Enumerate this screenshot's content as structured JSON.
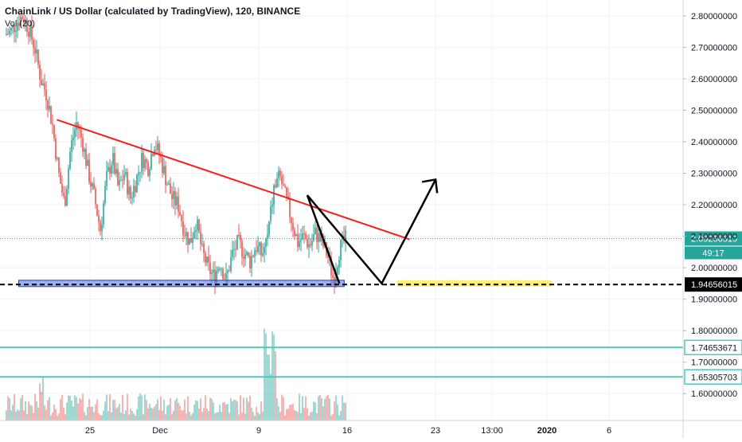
{
  "header": {
    "title": "ChainLink / US Dollar (calculated by TradingView), 120, BINANCE",
    "volume_label": "Vol (20)"
  },
  "colors": {
    "up": "#26a69a",
    "down": "#ef5350",
    "trendline": "#ff1a1a",
    "support_box": "#4a6fe3",
    "target_box": "#ffeb3b",
    "projection": "#000000",
    "level_line": "#4dc8c1",
    "last_price_line": "#26a69a"
  },
  "chart_data": {
    "type": "candlestick",
    "title": "ChainLink / US Dollar (calculated by TradingView), 120, BINANCE",
    "x_tick_labels": [
      "25",
      "Dec",
      "9",
      "16",
      "23",
      "13:00",
      "2020",
      "6"
    ],
    "y_ticks": [
      "2.80000000",
      "2.70000000",
      "2.60000000",
      "2.50000000",
      "2.40000000",
      "2.30000000",
      "2.20000000",
      "2.10000000",
      "2.00000000",
      "1.90000000",
      "1.80000000",
      "1.70000000",
      "1.60000000"
    ],
    "ylim": [
      1.55,
      2.83
    ],
    "price_labels": [
      {
        "name": "last-price",
        "value": 2.09256519,
        "text": "2.09256519",
        "countdown": "49:17",
        "style": "teal"
      },
      {
        "name": "support-level",
        "value": 1.94656015,
        "text": "1.94656015",
        "style": "black"
      },
      {
        "name": "level-1",
        "value": 1.74653671,
        "text": "1.74653671",
        "style": "teal-outline"
      },
      {
        "name": "level-2",
        "value": 1.65305703,
        "text": "1.65305703",
        "style": "teal-outline"
      }
    ],
    "price_path": [
      [
        0,
        2.74
      ],
      [
        1,
        2.75
      ],
      [
        2,
        2.78
      ],
      [
        3,
        2.8
      ],
      [
        4,
        2.76
      ],
      [
        5,
        2.7
      ],
      [
        6,
        2.6
      ],
      [
        7,
        2.55
      ],
      [
        8,
        2.45
      ],
      [
        9,
        2.3
      ],
      [
        10,
        2.2
      ],
      [
        11,
        2.38
      ],
      [
        12,
        2.46
      ],
      [
        13,
        2.4
      ],
      [
        14,
        2.3
      ],
      [
        15,
        2.22
      ],
      [
        16,
        2.12
      ],
      [
        17,
        2.28
      ],
      [
        18,
        2.35
      ],
      [
        19,
        2.25
      ],
      [
        20,
        2.3
      ],
      [
        21,
        2.22
      ],
      [
        22,
        2.28
      ],
      [
        23,
        2.35
      ],
      [
        24,
        2.32
      ],
      [
        25,
        2.4
      ],
      [
        26,
        2.35
      ],
      [
        27,
        2.28
      ],
      [
        28,
        2.22
      ],
      [
        29,
        2.2
      ],
      [
        30,
        2.12
      ],
      [
        31,
        2.08
      ],
      [
        32,
        2.15
      ],
      [
        33,
        2.05
      ],
      [
        34,
        2.0
      ],
      [
        35,
        1.97
      ],
      [
        36,
        2.02
      ],
      [
        37,
        1.96
      ],
      [
        38,
        2.04
      ],
      [
        39,
        2.08
      ],
      [
        40,
        2.05
      ],
      [
        41,
        2.02
      ],
      [
        42,
        2.07
      ],
      [
        43,
        2.04
      ],
      [
        44,
        2.1
      ],
      [
        45,
        2.25
      ],
      [
        46,
        2.29
      ],
      [
        47,
        2.22
      ],
      [
        48,
        2.15
      ],
      [
        49,
        2.08
      ],
      [
        50,
        2.1
      ],
      [
        51,
        2.07
      ],
      [
        52,
        2.11
      ],
      [
        53,
        2.08
      ],
      [
        54,
        2.04
      ],
      [
        55,
        1.96
      ],
      [
        56,
        2.06
      ],
      [
        57,
        2.09
      ]
    ],
    "annotations": {
      "trendline": [
        [
          8.6,
          2.47
        ],
        [
          66.9,
          2.09
        ]
      ],
      "projection": [
        [
          55.3,
          1.95
        ],
        [
          50.0,
          2.23
        ],
        [
          62.3,
          1.95
        ],
        [
          71.2,
          2.28
        ]
      ],
      "support_zone": {
        "x0": 2.3,
        "x1": 56.1,
        "y0": 1.94,
        "y1": 1.96
      },
      "target_zone": {
        "x0": 64.8,
        "x1": 90.4,
        "y0": 1.94,
        "y1": 1.96
      }
    }
  }
}
